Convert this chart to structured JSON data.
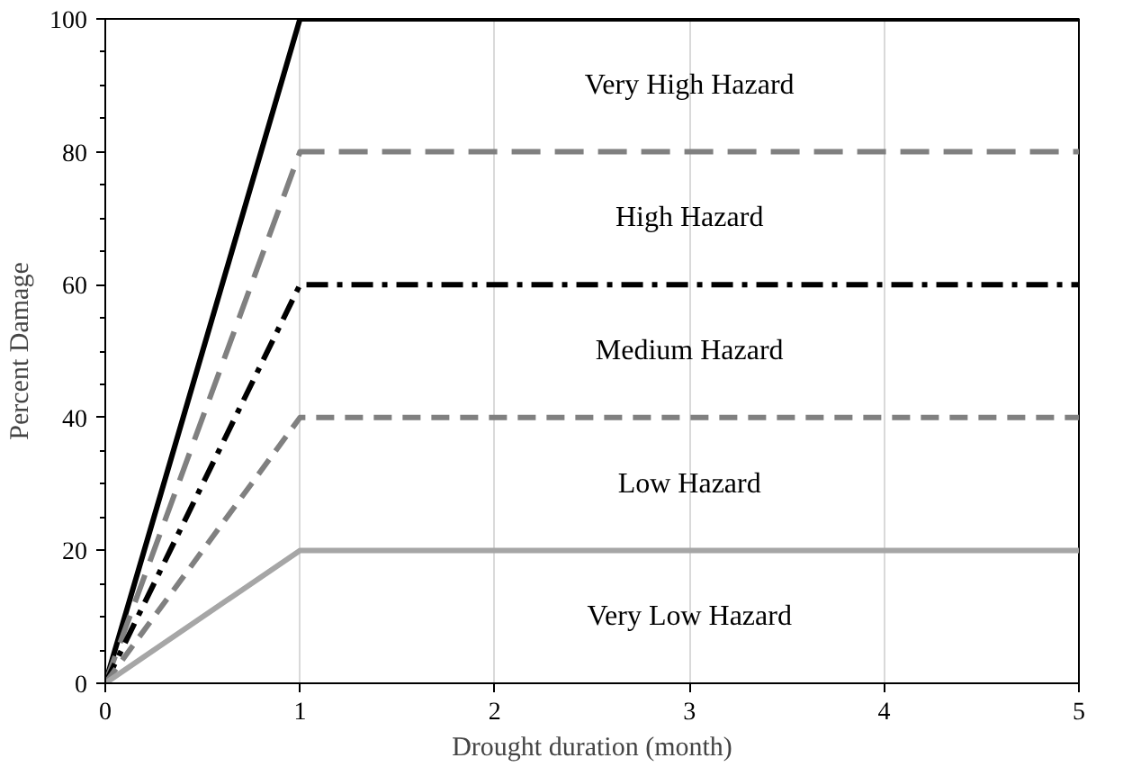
{
  "chart_data": {
    "type": "line",
    "xlabel": "Drought duration (month)",
    "ylabel": "Percent Damage",
    "x": [
      0,
      1,
      5
    ],
    "series": [
      {
        "color": "#000000",
        "values": [
          0,
          100,
          100
        ],
        "line_style": "solid"
      },
      {
        "color": "#808080",
        "values": [
          0,
          80,
          80
        ],
        "line_style": "dashed"
      },
      {
        "color": "#000000",
        "values": [
          0,
          60,
          60
        ],
        "line_style": "dashdot"
      },
      {
        "color": "#808080",
        "values": [
          0,
          40,
          40
        ],
        "line_style": "dashed"
      },
      {
        "color": "#a6a6a6",
        "values": [
          0,
          20,
          20
        ],
        "line_style": "solid"
      }
    ],
    "xlim": [
      0,
      5
    ],
    "ylim": [
      0,
      100
    ],
    "xticks": [
      0,
      1,
      2,
      3,
      4,
      5
    ],
    "yticks": [
      0,
      20,
      40,
      60,
      80,
      100
    ],
    "grid": "x",
    "marker": "none",
    "annotations": [
      "Very High Hazard",
      "High Hazard",
      "Medium Hazard",
      "Low Hazard",
      "Very Low Hazard"
    ]
  }
}
